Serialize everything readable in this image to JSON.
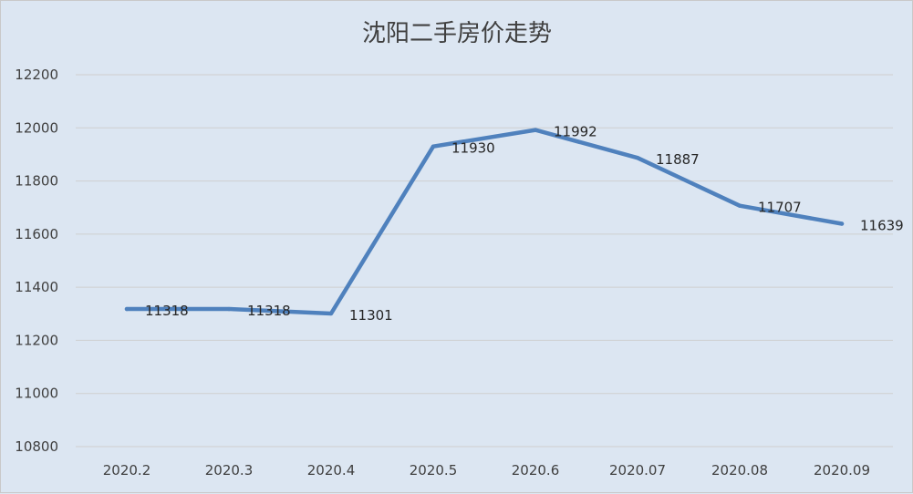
{
  "chart_data": {
    "type": "line",
    "title": "沈阳二手房价走势",
    "xlabel": "",
    "ylabel": "",
    "categories": [
      "2020.2",
      "2020.3",
      "2020.4",
      "2020.5",
      "2020.6",
      "2020.07",
      "2020.08",
      "2020.09"
    ],
    "series": [
      {
        "values": [
          11318,
          11318,
          11301,
          11930,
          11992,
          11887,
          11707,
          11639
        ],
        "color": "#4f81bd",
        "data_labels": [
          "11318",
          "11318",
          "11301",
          "11930",
          "11992",
          "11887",
          "11707",
          "11639"
        ]
      }
    ],
    "ylim": [
      10800,
      12200
    ],
    "yticks": [
      10800,
      11000,
      11200,
      11400,
      11600,
      11800,
      12000,
      12200
    ],
    "ytick_labels": [
      "10800",
      "11000",
      "11200",
      "11400",
      "11600",
      "11800",
      "12000",
      "12200"
    ],
    "grid": true,
    "legend": "none"
  }
}
